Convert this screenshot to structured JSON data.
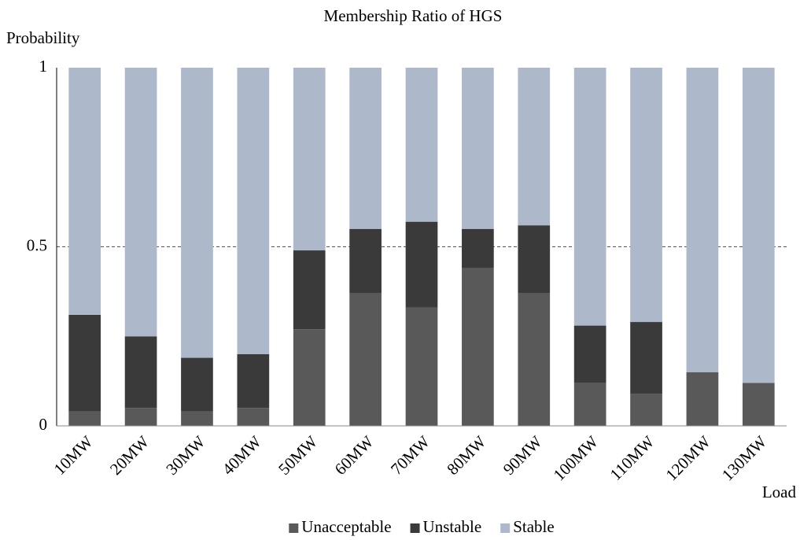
{
  "chart_data": {
    "type": "stacked_bar",
    "title": "Membership Ratio of HGS",
    "y_label": "Probability",
    "x_label": "Load",
    "categories": [
      "10MW",
      "20MW",
      "30MW",
      "40MW",
      "50MW",
      "60MW",
      "70MW",
      "80MW",
      "90MW",
      "100MW",
      "110MW",
      "120MW",
      "130MW"
    ],
    "series": [
      {
        "name": "Unacceptable",
        "color": "#595959",
        "values": [
          0.04,
          0.05,
          0.04,
          0.05,
          0.27,
          0.37,
          0.33,
          0.44,
          0.37,
          0.12,
          0.09,
          0.15,
          0.12
        ]
      },
      {
        "name": "Unstable",
        "color": "#3a3a3a",
        "values": [
          0.27,
          0.2,
          0.15,
          0.15,
          0.22,
          0.18,
          0.24,
          0.11,
          0.19,
          0.16,
          0.2,
          0,
          0
        ]
      },
      {
        "name": "Stable",
        "color": "#adb9ca",
        "values": [
          0.69,
          0.75,
          0.81,
          0.8,
          0.51,
          0.45,
          0.43,
          0.45,
          0.44,
          0.72,
          0.71,
          0.85,
          0.88
        ]
      }
    ],
    "ylim": [
      0,
      1
    ],
    "yticks": [
      0,
      0.5,
      1
    ],
    "grid": true,
    "legend": "bottom"
  }
}
